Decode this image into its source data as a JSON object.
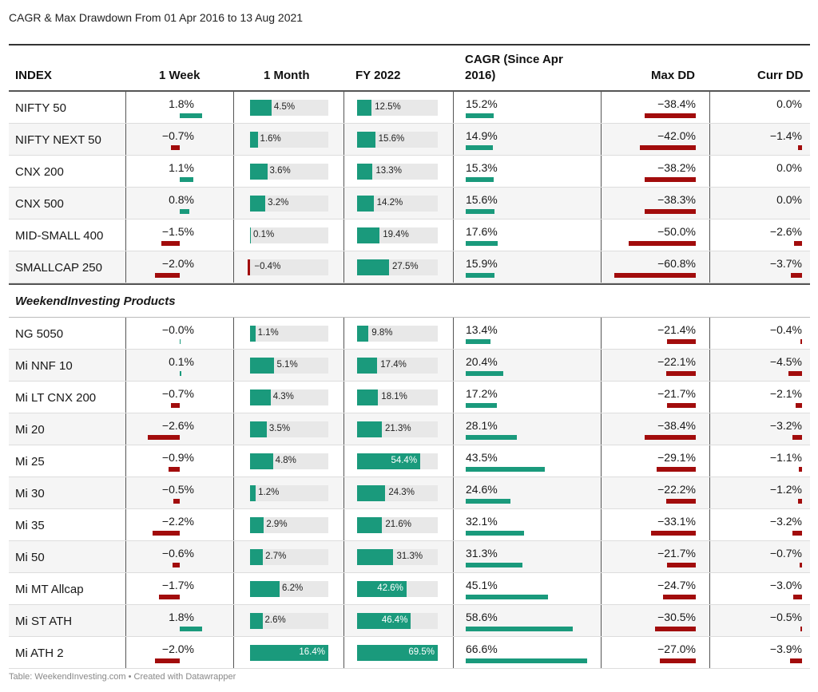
{
  "title": "CAGR & Max Drawdown From 01 Apr 2016 to 13 Aug 2021",
  "footer": "Table: WeekendInvesting.com • Created with Datawrapper",
  "colors": {
    "positive": "#1a9a7c",
    "negative": "#a20c0c",
    "track": "#e8e8e8"
  },
  "chart_data": {
    "type": "table",
    "columns": [
      "INDEX",
      "1 Week",
      "1 Month",
      "FY 2022",
      "CAGR (Since Apr 2016)",
      "Max DD",
      "Curr DD"
    ],
    "group_label": "WeekendInvesting Products",
    "rows": [
      {
        "name": "NIFTY 50",
        "week": 1.8,
        "week_t": "1.8%",
        "month": 4.5,
        "month_t": "4.5%",
        "fy": 12.5,
        "fy_t": "12.5%",
        "cagr": 15.2,
        "cagr_t": "15.2%",
        "maxdd": -38.4,
        "maxdd_t": "−38.4%",
        "curr": 0.0,
        "curr_t": "0.0%"
      },
      {
        "name": "NIFTY NEXT 50",
        "week": -0.7,
        "week_t": "−0.7%",
        "month": 1.6,
        "month_t": "1.6%",
        "fy": 15.6,
        "fy_t": "15.6%",
        "cagr": 14.9,
        "cagr_t": "14.9%",
        "maxdd": -42.0,
        "maxdd_t": "−42.0%",
        "curr": -1.4,
        "curr_t": "−1.4%"
      },
      {
        "name": "CNX 200",
        "week": 1.1,
        "week_t": "1.1%",
        "month": 3.6,
        "month_t": "3.6%",
        "fy": 13.3,
        "fy_t": "13.3%",
        "cagr": 15.3,
        "cagr_t": "15.3%",
        "maxdd": -38.2,
        "maxdd_t": "−38.2%",
        "curr": 0.0,
        "curr_t": "0.0%"
      },
      {
        "name": "CNX 500",
        "week": 0.8,
        "week_t": "0.8%",
        "month": 3.2,
        "month_t": "3.2%",
        "fy": 14.2,
        "fy_t": "14.2%",
        "cagr": 15.6,
        "cagr_t": "15.6%",
        "maxdd": -38.3,
        "maxdd_t": "−38.3%",
        "curr": 0.0,
        "curr_t": "0.0%"
      },
      {
        "name": "MID-SMALL 400",
        "week": -1.5,
        "week_t": "−1.5%",
        "month": 0.1,
        "month_t": "0.1%",
        "fy": 19.4,
        "fy_t": "19.4%",
        "cagr": 17.6,
        "cagr_t": "17.6%",
        "maxdd": -50.0,
        "maxdd_t": "−50.0%",
        "curr": -2.6,
        "curr_t": "−2.6%"
      },
      {
        "name": "SMALLCAP 250",
        "week": -2.0,
        "week_t": "−2.0%",
        "month": -0.4,
        "month_t": "−0.4%",
        "fy": 27.5,
        "fy_t": "27.5%",
        "cagr": 15.9,
        "cagr_t": "15.9%",
        "maxdd": -60.8,
        "maxdd_t": "−60.8%",
        "curr": -3.7,
        "curr_t": "−3.7%"
      },
      {
        "group": true
      },
      {
        "name": "NG 5050",
        "week": -0.0,
        "week_t": "−0.0%",
        "month": 1.1,
        "month_t": "1.1%",
        "fy": 9.8,
        "fy_t": "9.8%",
        "cagr": 13.4,
        "cagr_t": "13.4%",
        "maxdd": -21.4,
        "maxdd_t": "−21.4%",
        "curr": -0.4,
        "curr_t": "−0.4%"
      },
      {
        "name": "Mi NNF 10",
        "week": 0.1,
        "week_t": "0.1%",
        "month": 5.1,
        "month_t": "5.1%",
        "fy": 17.4,
        "fy_t": "17.4%",
        "cagr": 20.4,
        "cagr_t": "20.4%",
        "maxdd": -22.1,
        "maxdd_t": "−22.1%",
        "curr": -4.5,
        "curr_t": "−4.5%"
      },
      {
        "name": "Mi LT CNX 200",
        "week": -0.7,
        "week_t": "−0.7%",
        "month": 4.3,
        "month_t": "4.3%",
        "fy": 18.1,
        "fy_t": "18.1%",
        "cagr": 17.2,
        "cagr_t": "17.2%",
        "maxdd": -21.7,
        "maxdd_t": "−21.7%",
        "curr": -2.1,
        "curr_t": "−2.1%"
      },
      {
        "name": "Mi 20",
        "week": -2.6,
        "week_t": "−2.6%",
        "month": 3.5,
        "month_t": "3.5%",
        "fy": 21.3,
        "fy_t": "21.3%",
        "cagr": 28.1,
        "cagr_t": "28.1%",
        "maxdd": -38.4,
        "maxdd_t": "−38.4%",
        "curr": -3.2,
        "curr_t": "−3.2%"
      },
      {
        "name": "Mi 25",
        "week": -0.9,
        "week_t": "−0.9%",
        "month": 4.8,
        "month_t": "4.8%",
        "fy": 54.4,
        "fy_t": "54.4%",
        "cagr": 43.5,
        "cagr_t": "43.5%",
        "maxdd": -29.1,
        "maxdd_t": "−29.1%",
        "curr": -1.1,
        "curr_t": "−1.1%"
      },
      {
        "name": "Mi 30",
        "week": -0.5,
        "week_t": "−0.5%",
        "month": 1.2,
        "month_t": "1.2%",
        "fy": 24.3,
        "fy_t": "24.3%",
        "cagr": 24.6,
        "cagr_t": "24.6%",
        "maxdd": -22.2,
        "maxdd_t": "−22.2%",
        "curr": -1.2,
        "curr_t": "−1.2%"
      },
      {
        "name": "Mi 35",
        "week": -2.2,
        "week_t": "−2.2%",
        "month": 2.9,
        "month_t": "2.9%",
        "fy": 21.6,
        "fy_t": "21.6%",
        "cagr": 32.1,
        "cagr_t": "32.1%",
        "maxdd": -33.1,
        "maxdd_t": "−33.1%",
        "curr": -3.2,
        "curr_t": "−3.2%"
      },
      {
        "name": "Mi 50",
        "week": -0.6,
        "week_t": "−0.6%",
        "month": 2.7,
        "month_t": "2.7%",
        "fy": 31.3,
        "fy_t": "31.3%",
        "cagr": 31.3,
        "cagr_t": "31.3%",
        "maxdd": -21.7,
        "maxdd_t": "−21.7%",
        "curr": -0.7,
        "curr_t": "−0.7%"
      },
      {
        "name": "Mi MT Allcap",
        "week": -1.7,
        "week_t": "−1.7%",
        "month": 6.2,
        "month_t": "6.2%",
        "fy": 42.6,
        "fy_t": "42.6%",
        "cagr": 45.1,
        "cagr_t": "45.1%",
        "maxdd": -24.7,
        "maxdd_t": "−24.7%",
        "curr": -3.0,
        "curr_t": "−3.0%"
      },
      {
        "name": "Mi ST ATH",
        "week": 1.8,
        "week_t": "1.8%",
        "month": 2.6,
        "month_t": "2.6%",
        "fy": 46.4,
        "fy_t": "46.4%",
        "cagr": 58.6,
        "cagr_t": "58.6%",
        "maxdd": -30.5,
        "maxdd_t": "−30.5%",
        "curr": -0.5,
        "curr_t": "−0.5%"
      },
      {
        "name": "Mi ATH 2",
        "week": -2.0,
        "week_t": "−2.0%",
        "month": 16.4,
        "month_t": "16.4%",
        "fy": 69.5,
        "fy_t": "69.5%",
        "cagr": 66.6,
        "cagr_t": "66.6%",
        "maxdd": -27.0,
        "maxdd_t": "−27.0%",
        "curr": -3.9,
        "curr_t": "−3.9%"
      }
    ]
  }
}
